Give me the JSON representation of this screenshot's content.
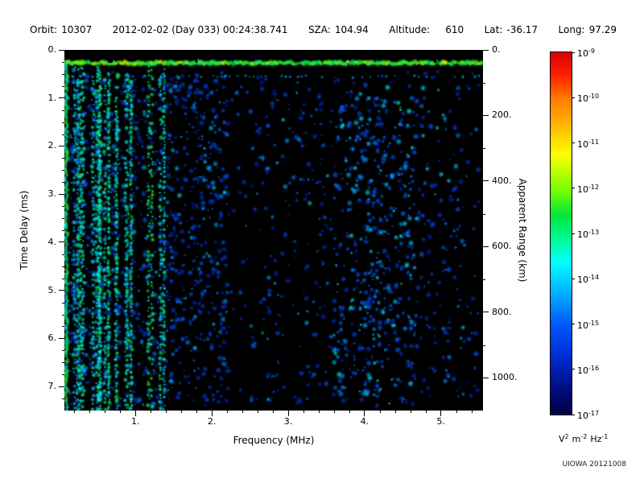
{
  "header": {
    "orbit_label": "Orbit:",
    "orbit_value": "10307",
    "datetime": "2012-02-02 (Day 033) 00:24:38.741",
    "sza_label": "SZA:",
    "sza_value": "104.94",
    "altitude_label": "Altitude:",
    "altitude_value": "610",
    "lat_label": "Lat:",
    "lat_value": "-36.17",
    "long_label": "Long:",
    "long_value": "97.29"
  },
  "chart_data": {
    "type": "heatmap",
    "title": "",
    "xlabel": "Frequency (MHz)",
    "ylabel_left": "Time Delay (ms)",
    "ylabel_right": "Apparent Range (km)",
    "x_range_mhz": [
      0.07,
      5.55
    ],
    "y_range_ms": [
      0,
      7.5
    ],
    "y_range_km": [
      0,
      1100
    ],
    "grid": false,
    "legend": "colorbar-right",
    "background_level_exp": -17,
    "x_ticks": [
      {
        "v": 1,
        "label": "1."
      },
      {
        "v": 2,
        "label": "2."
      },
      {
        "v": 3,
        "label": "3."
      },
      {
        "v": 4,
        "label": "4."
      },
      {
        "v": 5,
        "label": "5."
      }
    ],
    "y_ticks_left": [
      {
        "v": 0,
        "label": "0."
      },
      {
        "v": 1,
        "label": "1."
      },
      {
        "v": 2,
        "label": "2."
      },
      {
        "v": 3,
        "label": "3."
      },
      {
        "v": 4,
        "label": "4."
      },
      {
        "v": 5,
        "label": "5."
      },
      {
        "v": 6,
        "label": "6."
      },
      {
        "v": 7,
        "label": "7."
      }
    ],
    "y_ticks_right": [
      {
        "v": 0,
        "label": "0."
      },
      {
        "v": 200,
        "label": "200."
      },
      {
        "v": 400,
        "label": "400."
      },
      {
        "v": 600,
        "label": "600."
      },
      {
        "v": 800,
        "label": "800."
      },
      {
        "v": 1000,
        "label": "1000."
      }
    ],
    "colorbar": {
      "scale": "log",
      "max_exp": -9,
      "min_exp": -17,
      "tick_exponents": [
        -9,
        -10,
        -11,
        -12,
        -13,
        -14,
        -15,
        -16,
        -17
      ],
      "tick_base": "10",
      "units_parts": [
        [
          "V",
          "2"
        ],
        [
          "m",
          "-2"
        ],
        [
          "Hz",
          "-1"
        ]
      ]
    },
    "features": [
      {
        "id": "bright-horizontal-band",
        "type": "horizontal-band",
        "delay_ms": 0.27,
        "width_ms": 0.15,
        "freq_mhz": [
          0.07,
          5.55
        ],
        "level_exp": -12.8,
        "peak_exp": -11.5
      },
      {
        "id": "secondary-dashes",
        "type": "horizontal-band",
        "delay_ms": 0.55,
        "width_ms": 0.08,
        "freq_mhz": [
          0.07,
          5.55
        ],
        "level_exp": -14.8
      },
      {
        "id": "vertical-stripes-low-freq",
        "type": "vertical-stripes",
        "freq_mhz": [
          0.07,
          1.45
        ],
        "delay_ms": [
          0.3,
          7.5
        ],
        "level_exp": -13.6
      },
      {
        "id": "left-edge-column",
        "type": "vertical-band",
        "freq_mhz": [
          0.07,
          0.12
        ],
        "delay_ms": [
          0.25,
          7.5
        ],
        "level_exp": -13.2
      },
      {
        "id": "dashed-vertical-line",
        "type": "vertical-dashed-line",
        "freq_mhz": 1.38,
        "delay_ms": [
          0.4,
          7.5
        ],
        "level_exp": -13.4
      },
      {
        "id": "diffuse-speckle",
        "type": "speckle",
        "freq_mhz": [
          0.07,
          5.55
        ],
        "delay_ms": [
          0.45,
          7.5
        ],
        "level_exp": -15.8,
        "bright_exp": -14.0
      },
      {
        "id": "dense-cluster",
        "type": "speckle",
        "freq_mhz": [
          3.6,
          4.7
        ],
        "delay_ms": [
          1.0,
          7.4
        ],
        "level_exp": -15.3
      },
      {
        "id": "dark-column",
        "type": "dark-column",
        "freq_mhz": [
          2.22,
          2.48
        ],
        "level_exp": -17
      }
    ]
  },
  "credit": "UIOWA 20121008"
}
